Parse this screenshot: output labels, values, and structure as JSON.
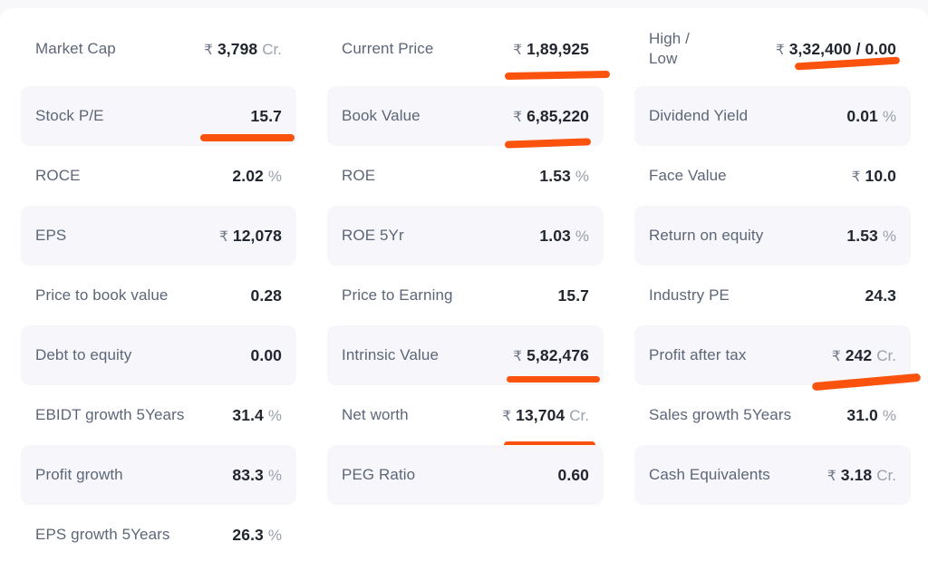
{
  "theme": {
    "marker_color": "#fb530e",
    "shaded_row_color": "#f6f6fb",
    "page_background": "#f8f8fa",
    "card_background": "#ffffff"
  },
  "columns": [
    {
      "rows": [
        {
          "label": "Market Cap",
          "prefix": "₹",
          "value": "3,798",
          "suffix": "Cr.",
          "shaded": false,
          "marker": null
        },
        {
          "label": "Stock P/E",
          "prefix": "",
          "value": "15.7",
          "suffix": "",
          "shaded": true,
          "marker": "stock-pe"
        },
        {
          "label": "ROCE",
          "prefix": "",
          "value": "2.02",
          "suffix": "%",
          "shaded": false,
          "marker": null
        },
        {
          "label": "EPS",
          "prefix": "₹",
          "value": "12,078",
          "suffix": "",
          "shaded": true,
          "marker": null
        },
        {
          "label": "Price to book value",
          "prefix": "",
          "value": "0.28",
          "suffix": "",
          "shaded": false,
          "marker": null
        },
        {
          "label": "Debt to equity",
          "prefix": "",
          "value": "0.00",
          "suffix": "",
          "shaded": true,
          "marker": null
        },
        {
          "label": "EBIDT growth 5Years",
          "prefix": "",
          "value": "31.4",
          "suffix": "%",
          "shaded": false,
          "marker": null
        },
        {
          "label": "Profit growth",
          "prefix": "",
          "value": "83.3",
          "suffix": "%",
          "shaded": true,
          "marker": null
        },
        {
          "label": "EPS growth 5Years",
          "prefix": "",
          "value": "26.3",
          "suffix": "%",
          "shaded": false,
          "marker": null
        }
      ]
    },
    {
      "rows": [
        {
          "label": "Current Price",
          "prefix": "₹",
          "value": "1,89,925",
          "suffix": "",
          "shaded": false,
          "marker": "current-price"
        },
        {
          "label": "Book Value",
          "prefix": "₹",
          "value": "6,85,220",
          "suffix": "",
          "shaded": true,
          "marker": "book-value"
        },
        {
          "label": "ROE",
          "prefix": "",
          "value": "1.53",
          "suffix": "%",
          "shaded": false,
          "marker": null
        },
        {
          "label": "ROE 5Yr",
          "prefix": "",
          "value": "1.03",
          "suffix": "%",
          "shaded": true,
          "marker": null
        },
        {
          "label": "Price to Earning",
          "prefix": "",
          "value": "15.7",
          "suffix": "",
          "shaded": false,
          "marker": null
        },
        {
          "label": "Intrinsic Value",
          "prefix": "₹",
          "value": "5,82,476",
          "suffix": "",
          "shaded": true,
          "marker": "intrinsic-value"
        },
        {
          "label": "Net worth",
          "prefix": "₹",
          "value": "13,704",
          "suffix": "Cr.",
          "shaded": false,
          "marker": "net-worth"
        },
        {
          "label": "PEG Ratio",
          "prefix": "",
          "value": "0.60",
          "suffix": "",
          "shaded": true,
          "marker": null
        }
      ]
    },
    {
      "rows": [
        {
          "label": "High /\nLow",
          "prefix": "₹",
          "value": "3,32,400 / 0.00",
          "suffix": "",
          "shaded": false,
          "marker": "high-low"
        },
        {
          "label": "Dividend Yield",
          "prefix": "",
          "value": "0.01",
          "suffix": "%",
          "shaded": true,
          "marker": null
        },
        {
          "label": "Face Value",
          "prefix": "₹",
          "value": "10.0",
          "suffix": "",
          "shaded": false,
          "marker": null
        },
        {
          "label": "Return on equity",
          "prefix": "",
          "value": "1.53",
          "suffix": "%",
          "shaded": true,
          "marker": null
        },
        {
          "label": "Industry PE",
          "prefix": "",
          "value": "24.3",
          "suffix": "",
          "shaded": false,
          "marker": null
        },
        {
          "label": "Profit after tax",
          "prefix": "₹",
          "value": "242",
          "suffix": "Cr.",
          "shaded": true,
          "marker": "profit-after-tax"
        },
        {
          "label": "Sales growth 5Years",
          "prefix": "",
          "value": "31.0",
          "suffix": "%",
          "shaded": false,
          "marker": null
        },
        {
          "label": "Cash Equivalents",
          "prefix": "₹",
          "value": "3.18",
          "suffix": "Cr.",
          "shaded": true,
          "marker": null
        }
      ]
    }
  ]
}
